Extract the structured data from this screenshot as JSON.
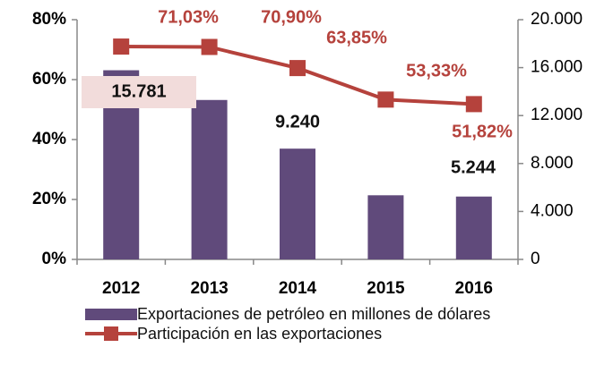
{
  "chart_data": {
    "type": "bar_line",
    "categories": [
      "2012",
      "2013",
      "2014",
      "2015",
      "2016"
    ],
    "series": [
      {
        "name": "Exportaciones de petróleo en millones de dólares",
        "type": "bar",
        "axis": "y2",
        "color": "#604a7b",
        "values": [
          15781,
          13300,
          9240,
          5350,
          5244
        ],
        "value_labels": [
          "15.781",
          null,
          "9.240",
          null,
          "5.244"
        ]
      },
      {
        "name": "Participación en las exportaciones",
        "type": "line",
        "axis": "y",
        "color": "#b5423c",
        "values": [
          71.03,
          70.9,
          63.85,
          53.33,
          51.82
        ],
        "value_labels": [
          "71,03%",
          "70,90%",
          "63,85%",
          "53,33%",
          "51,82%"
        ]
      }
    ],
    "ylim": [
      0,
      80
    ],
    "yticks": [
      {
        "value": 0,
        "label": "0%"
      },
      {
        "value": 20,
        "label": "20%"
      },
      {
        "value": 40,
        "label": "40%"
      },
      {
        "value": 60,
        "label": "60%"
      },
      {
        "value": 80,
        "label": "80%"
      }
    ],
    "y2lim": [
      0,
      20000
    ],
    "y2ticks": [
      0,
      {
        "value": 4000,
        "label": "4.000"
      },
      {
        "value": 8000,
        "label": "8.000"
      },
      {
        "value": 12000,
        "label": "12.000"
      },
      {
        "value": 16000,
        "label": "16.000"
      },
      {
        "value": 20000,
        "label": "20.000"
      }
    ],
    "legend": "bottom"
  }
}
